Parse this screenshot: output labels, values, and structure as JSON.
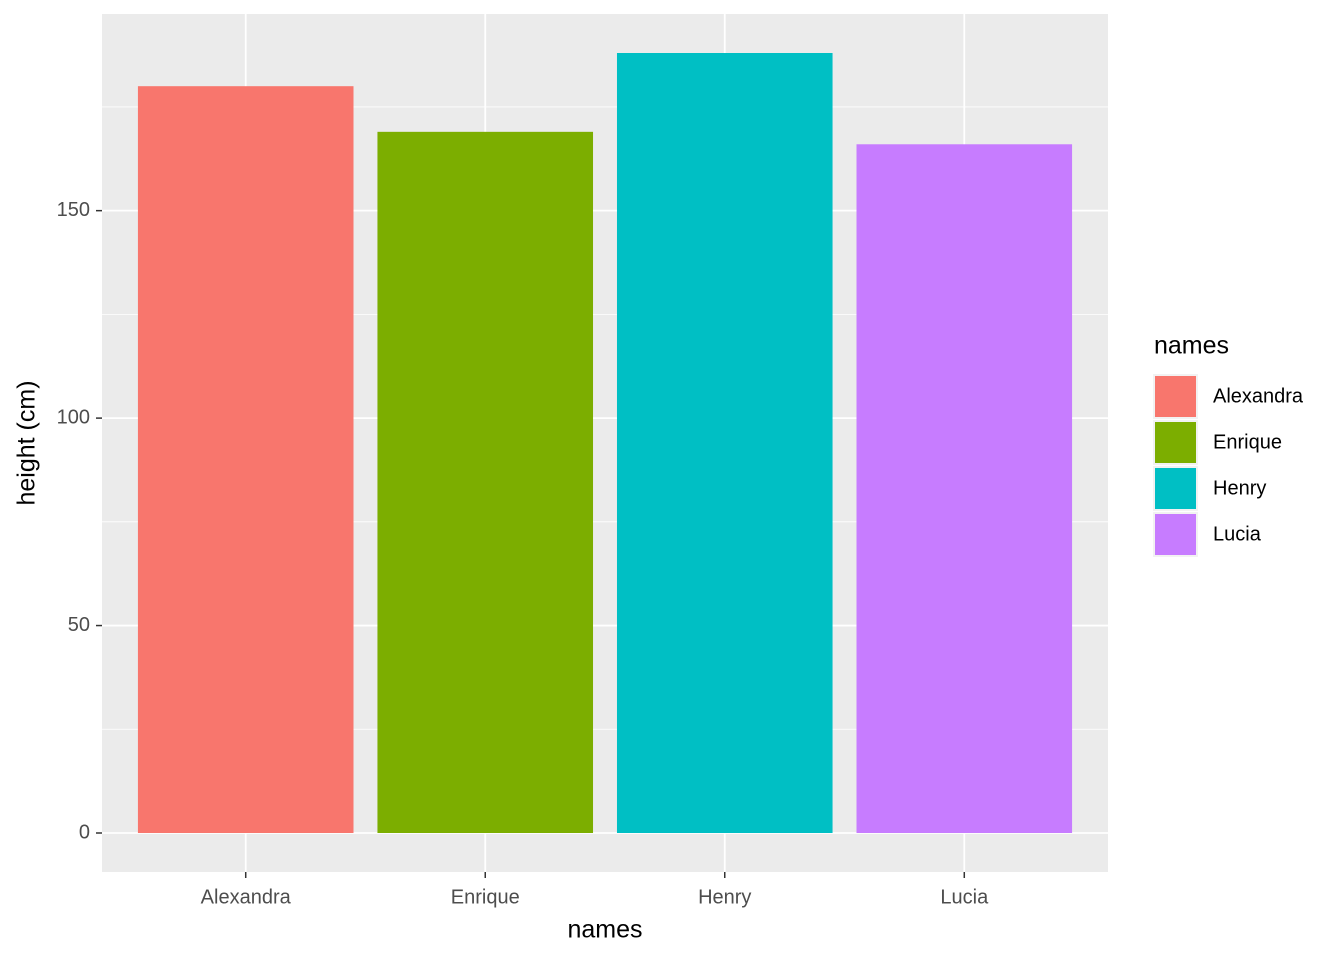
{
  "chart_data": {
    "type": "bar",
    "x_label": "names",
    "y_label": "height (cm)",
    "legend_title": "names",
    "categories": [
      "Alexandra",
      "Enrique",
      "Henry",
      "Lucia"
    ],
    "values": [
      180,
      169,
      188,
      166
    ],
    "colors": [
      "#f8766d",
      "#7cae00",
      "#00bfc4",
      "#c77cff"
    ],
    "ylim": [
      -9.4,
      197.4
    ],
    "yticks": [
      0,
      50,
      100,
      150
    ],
    "y_minor_ticks": [
      25,
      75,
      125,
      175
    ],
    "grid": true,
    "legend": "right"
  }
}
